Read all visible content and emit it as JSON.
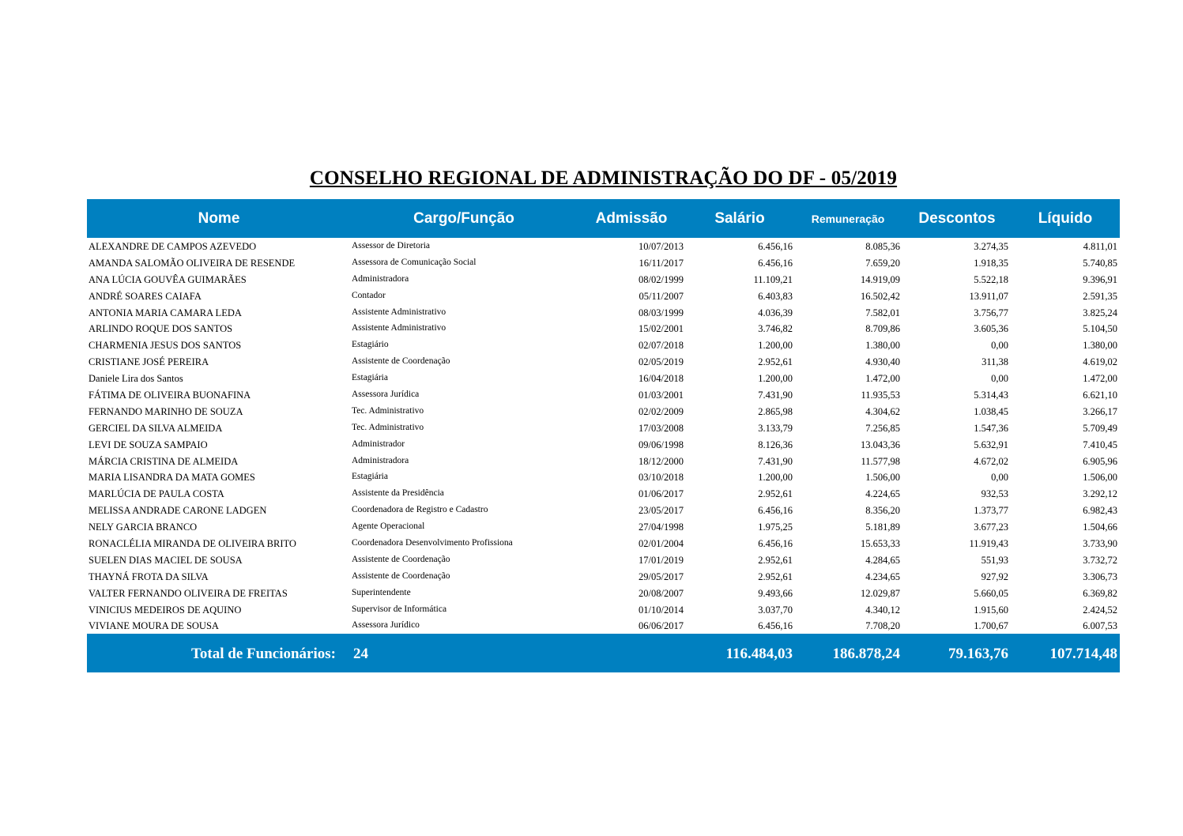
{
  "title": "CONSELHO REGIONAL DE ADMINISTRAÇÃO DO DF - 05/2019",
  "header": {
    "nome": "Nome",
    "cargo": "Cargo/Função",
    "admissao": "Admissão",
    "salario": "Salário",
    "remuneracao": "Remuneração",
    "descontos": "Descontos",
    "liquido": "Líquido"
  },
  "rows": [
    [
      "ALEXANDRE DE CAMPOS AZEVEDO",
      "Assessor de Diretoria",
      "10/07/2013",
      "6.456,16",
      "8.085,36",
      "3.274,35",
      "4.811,01"
    ],
    [
      "AMANDA SALOMÃO OLIVEIRA DE RESENDE",
      "Assessora de Comunicação Social",
      "16/11/2017",
      "6.456,16",
      "7.659,20",
      "1.918,35",
      "5.740,85"
    ],
    [
      "ANA LÚCIA GOUVÊA GUIMARÃES",
      "Administradora",
      "08/02/1999",
      "11.109,21",
      "14.919,09",
      "5.522,18",
      "9.396,91"
    ],
    [
      "ANDRÉ SOARES CAIAFA",
      "Contador",
      "05/11/2007",
      "6.403,83",
      "16.502,42",
      "13.911,07",
      "2.591,35"
    ],
    [
      "ANTONIA MARIA CAMARA LEDA",
      "Assistente Administrativo",
      "08/03/1999",
      "4.036,39",
      "7.582,01",
      "3.756,77",
      "3.825,24"
    ],
    [
      "ARLINDO ROQUE DOS SANTOS",
      "Assistente Administrativo",
      "15/02/2001",
      "3.746,82",
      "8.709,86",
      "3.605,36",
      "5.104,50"
    ],
    [
      "CHARMENIA JESUS DOS SANTOS",
      "Estagiário",
      "02/07/2018",
      "1.200,00",
      "1.380,00",
      "0,00",
      "1.380,00"
    ],
    [
      "CRISTIANE JOSÉ PEREIRA",
      "Assistente de Coordenação",
      "02/05/2019",
      "2.952,61",
      "4.930,40",
      "311,38",
      "4.619,02"
    ],
    [
      "Daniele Lira dos Santos",
      "Estagiária",
      "16/04/2018",
      "1.200,00",
      "1.472,00",
      "0,00",
      "1.472,00"
    ],
    [
      "FÁTIMA DE OLIVEIRA BUONAFINA",
      "Assessora Jurídica",
      "01/03/2001",
      "7.431,90",
      "11.935,53",
      "5.314,43",
      "6.621,10"
    ],
    [
      "FERNANDO MARINHO DE SOUZA",
      "Tec. Administrativo",
      "02/02/2009",
      "2.865,98",
      "4.304,62",
      "1.038,45",
      "3.266,17"
    ],
    [
      "GERCIEL DA SILVA ALMEIDA",
      "Tec. Administrativo",
      "17/03/2008",
      "3.133,79",
      "7.256,85",
      "1.547,36",
      "5.709,49"
    ],
    [
      "LEVI DE SOUZA SAMPAIO",
      "Administrador",
      "09/06/1998",
      "8.126,36",
      "13.043,36",
      "5.632,91",
      "7.410,45"
    ],
    [
      "MÁRCIA CRISTINA DE ALMEIDA",
      "Administradora",
      "18/12/2000",
      "7.431,90",
      "11.577,98",
      "4.672,02",
      "6.905,96"
    ],
    [
      "MARIA LISANDRA DA MATA GOMES",
      "Estagiária",
      "03/10/2018",
      "1.200,00",
      "1.506,00",
      "0,00",
      "1.506,00"
    ],
    [
      "MARLÚCIA DE PAULA COSTA",
      "Assistente da Presidência",
      "01/06/2017",
      "2.952,61",
      "4.224,65",
      "932,53",
      "3.292,12"
    ],
    [
      "MELISSA ANDRADE CARONE LADGEN",
      "Coordenadora de Registro e Cadastro",
      "23/05/2017",
      "6.456,16",
      "8.356,20",
      "1.373,77",
      "6.982,43"
    ],
    [
      "NELY GARCIA BRANCO",
      "Agente Operacional",
      "27/04/1998",
      "1.975,25",
      "5.181,89",
      "3.677,23",
      "1.504,66"
    ],
    [
      "RONACLÉLIA MIRANDA DE OLIVEIRA BRITO",
      "Coordenadora Desenvolvimento Profissiona",
      "02/01/2004",
      "6.456,16",
      "15.653,33",
      "11.919,43",
      "3.733,90"
    ],
    [
      "SUELEN DIAS MACIEL DE SOUSA",
      "Assistente de Coordenação",
      "17/01/2019",
      "2.952,61",
      "4.284,65",
      "551,93",
      "3.732,72"
    ],
    [
      "THAYNÁ FROTA DA SILVA",
      "Assistente de Coordenação",
      "29/05/2017",
      "2.952,61",
      "4.234,65",
      "927,92",
      "3.306,73"
    ],
    [
      "VALTER FERNANDO OLIVEIRA DE FREITAS",
      "Superintendente",
      "20/08/2007",
      "9.493,66",
      "12.029,87",
      "5.660,05",
      "6.369,82"
    ],
    [
      "VINICIUS MEDEIROS DE AQUINO",
      "Supervisor de Informática",
      "01/10/2014",
      "3.037,70",
      "4.340,12",
      "1.915,60",
      "2.424,52"
    ],
    [
      "VIVIANE MOURA DE SOUSA",
      "Assessora Jurídico",
      "06/06/2017",
      "6.456,16",
      "7.708,20",
      "1.700,67",
      "6.007,53"
    ]
  ],
  "footer": {
    "label": "Total de Funcionários:",
    "count": "24",
    "salario": "116.484,03",
    "remuneracao": "186.878,24",
    "descontos": "79.163,76",
    "liquido": "107.714,48"
  },
  "colors": {
    "header_bg": "#0080c0"
  }
}
